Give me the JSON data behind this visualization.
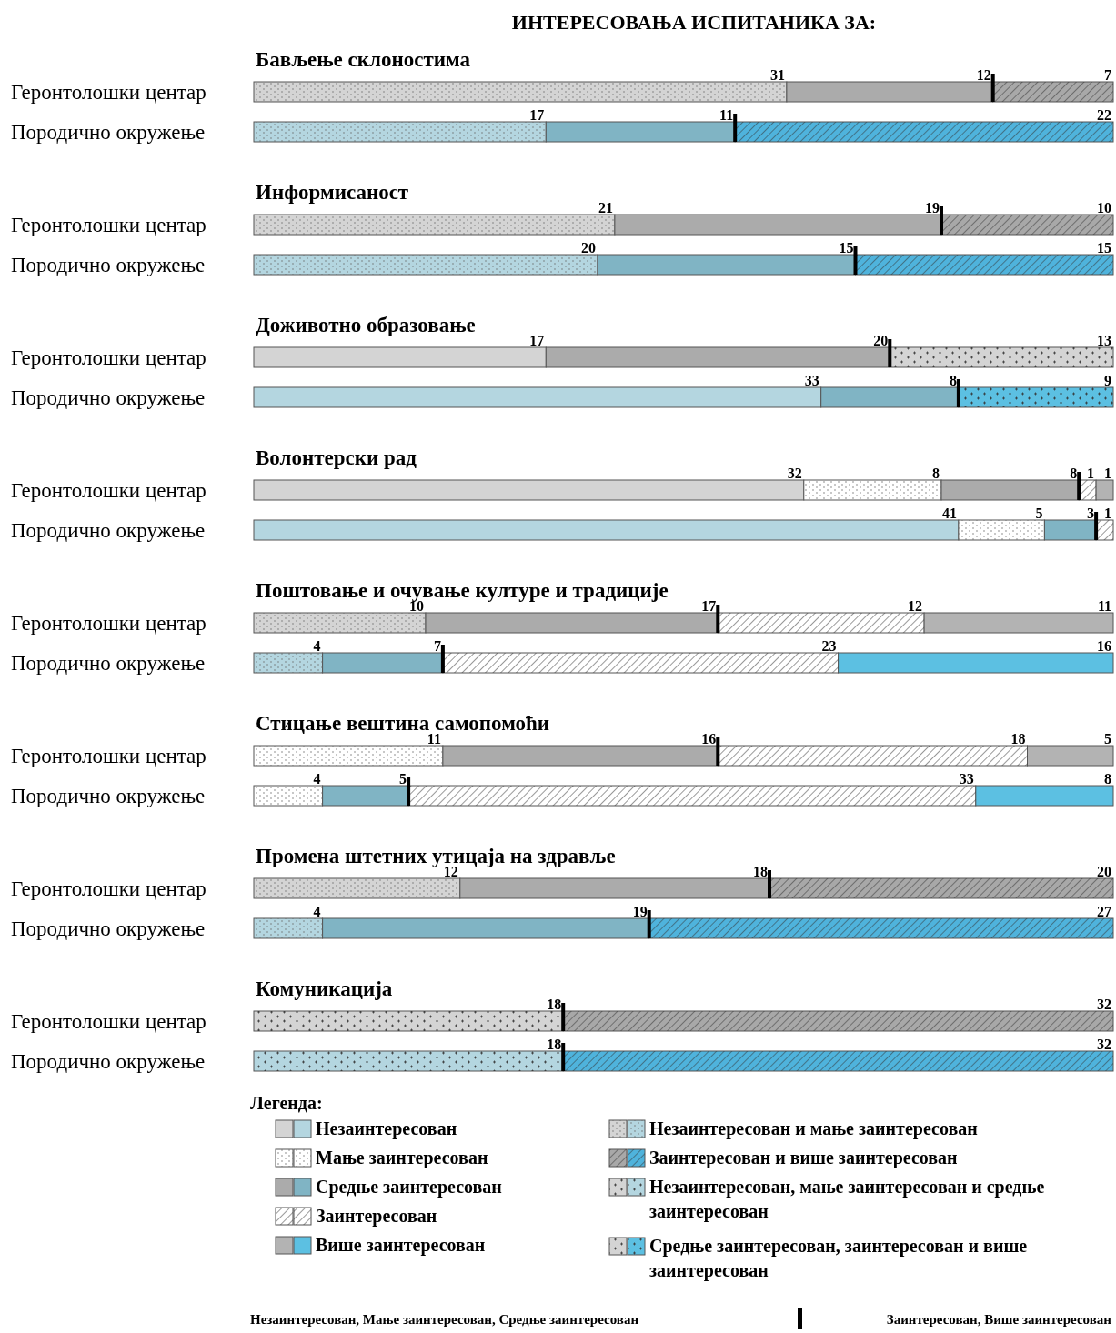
{
  "chart_data": {
    "type": "bar",
    "orientation": "horizontal",
    "stacked": true,
    "data_labels": true,
    "legend": "bottom",
    "legend_title": "Легенда:",
    "title": "ИНТЕРЕСОВАЊА ИСПИТАНИКА ЗА:",
    "annotations": [
      "Бављење склоностима",
      "Информисаност",
      "Доживотно образовање",
      "Волонтерски рад",
      "Поштовање и очување културе и традиције",
      "Стицање вештина самопомоћи",
      "Промена штетних утицаја на здравље",
      "Комуникација",
      "Незаинтересован, Мање заинтересован, Средње заинтересован",
      "Заинтересован, Више заинтересован"
    ],
    "categories": [
      "Геронтолошки центар",
      "Породично окружење",
      "Геронтолошки центар",
      "Породично окружење",
      "Геронтолошки центар",
      "Породично окружење",
      "Геронтолошки центар",
      "Породично окружење",
      "Геронтолошки центар",
      "Породично окружење",
      "Геронтолошки центар",
      "Породично окружење",
      "Геронтолошки центар",
      "Породично окружење",
      "Геронтолошки центар",
      "Породично окружење"
    ],
    "series": [
      {
        "name": "Незаинтересован",
        "colors": [
          "#d4d4d4",
          "#b4d6e0",
          "#d4d4d4",
          "#b4d6e0",
          "#d4d4d4",
          "#b4d6e0",
          "#d4d4d4",
          "#b4d6e0",
          "#d4d4d4",
          "#b4d6e0",
          "#d4d4d4",
          "#b4d6e0",
          "#d4d4d4",
          "#b4d6e0",
          "#d4d4d4",
          "#b4d6e0"
        ],
        "values": [
          null,
          null,
          null,
          null,
          17,
          33,
          32,
          41,
          null,
          null,
          null,
          null,
          null,
          null,
          null,
          null
        ]
      },
      {
        "name": "Незаинтересован и мање заинтересован",
        "colors": [
          "#d4d4d4",
          "#b4d6e0",
          "#d4d4d4",
          "#b4d6e0",
          "#d4d4d4",
          "#b4d6e0",
          "#d4d4d4",
          "#b4d6e0",
          "#d4d4d4",
          "#b4d6e0",
          "#d4d4d4",
          "#b4d6e0",
          "#d4d4d4",
          "#b4d6e0",
          "#d4d4d4",
          "#b4d6e0"
        ],
        "values": [
          31,
          17,
          21,
          20,
          null,
          null,
          null,
          null,
          10,
          4,
          null,
          null,
          12,
          4,
          null,
          null
        ]
      },
      {
        "name": "Незаинтересован, мање заинтересован и средње заинтересован",
        "colors": [
          "#d4d4d4",
          "#b4d6e0",
          "#d4d4d4",
          "#b4d6e0",
          "#d4d4d4",
          "#b4d6e0",
          "#d4d4d4",
          "#b4d6e0",
          "#d4d4d4",
          "#b4d6e0",
          "#d4d4d4",
          "#b4d6e0",
          "#d4d4d4",
          "#b4d6e0",
          "#d4d4d4",
          "#b4d6e0"
        ],
        "values": [
          null,
          null,
          null,
          null,
          null,
          null,
          null,
          null,
          null,
          null,
          null,
          null,
          null,
          null,
          18,
          18
        ]
      },
      {
        "name": "Мање заинтересован",
        "colors": [
          "#ffffff",
          "#ffffff",
          "#ffffff",
          "#ffffff",
          "#ffffff",
          "#ffffff",
          "#ffffff",
          "#ffffff",
          "#ffffff",
          "#ffffff",
          "#ffffff",
          "#ffffff",
          "#ffffff",
          "#ffffff",
          "#ffffff",
          "#ffffff"
        ],
        "values": [
          null,
          null,
          null,
          null,
          null,
          null,
          8,
          5,
          null,
          null,
          11,
          4,
          null,
          null,
          null,
          null
        ]
      },
      {
        "name": "Средње заинтересован",
        "colors": [
          "#ababab",
          "#80b4c4",
          "#ababab",
          "#80b4c4",
          "#ababab",
          "#80b4c4",
          "#ababab",
          "#80b4c4",
          "#ababab",
          "#80b4c4",
          "#ababab",
          "#80b4c4",
          "#ababab",
          "#80b4c4",
          "#ababab",
          "#80b4c4"
        ],
        "values": [
          12,
          11,
          19,
          15,
          20,
          8,
          8,
          3,
          17,
          7,
          16,
          5,
          18,
          19,
          null,
          null
        ]
      },
      {
        "name": "Средње заинтересован, заинтересован и више заинтересован",
        "colors": [
          "#d4d4d4",
          "#5cc0e2",
          "#d4d4d4",
          "#5cc0e2",
          "#d4d4d4",
          "#5cc0e2",
          "#d4d4d4",
          "#5cc0e2",
          "#d4d4d4",
          "#5cc0e2",
          "#d4d4d4",
          "#5cc0e2",
          "#d4d4d4",
          "#5cc0e2",
          "#d4d4d4",
          "#5cc0e2"
        ],
        "values": [
          null,
          null,
          null,
          null,
          13,
          9,
          null,
          null,
          null,
          null,
          null,
          null,
          null,
          null,
          null,
          null
        ]
      },
      {
        "name": "Заинтересован",
        "colors": [
          "#ffffff",
          "#ffffff",
          "#ffffff",
          "#ffffff",
          "#ffffff",
          "#ffffff",
          "#ffffff",
          "#ffffff",
          "#ffffff",
          "#ffffff",
          "#ffffff",
          "#ffffff",
          "#ffffff",
          "#ffffff",
          "#ffffff",
          "#ffffff"
        ],
        "values": [
          null,
          null,
          null,
          null,
          null,
          null,
          1,
          1,
          12,
          23,
          18,
          33,
          null,
          null,
          null,
          null
        ]
      },
      {
        "name": "Заинтересован и више заинтересован",
        "colors": [
          "#a8a8a8",
          "#4fb3dc",
          "#a8a8a8",
          "#4fb3dc",
          "#a8a8a8",
          "#4fb3dc",
          "#a8a8a8",
          "#4fb3dc",
          "#a8a8a8",
          "#4fb3dc",
          "#a8a8a8",
          "#4fb3dc",
          "#a8a8a8",
          "#4fb3dc",
          "#a8a8a8",
          "#4fb3dc"
        ],
        "values": [
          7,
          22,
          10,
          15,
          null,
          null,
          null,
          null,
          null,
          null,
          null,
          null,
          20,
          27,
          32,
          32
        ]
      },
      {
        "name": "Више заинтересован",
        "colors": [
          "#b3b3b3",
          "#5cc0e2",
          "#b3b3b3",
          "#5cc0e2",
          "#b3b3b3",
          "#5cc0e2",
          "#b3b3b3",
          "#5cc0e2",
          "#b3b3b3",
          "#5cc0e2",
          "#b3b3b3",
          "#5cc0e2",
          "#b3b3b3",
          "#5cc0e2",
          "#b3b3b3",
          "#5cc0e2"
        ],
        "values": [
          null,
          null,
          null,
          null,
          null,
          null,
          1,
          null,
          11,
          16,
          5,
          8,
          null,
          null,
          null,
          null
        ]
      }
    ]
  }
}
